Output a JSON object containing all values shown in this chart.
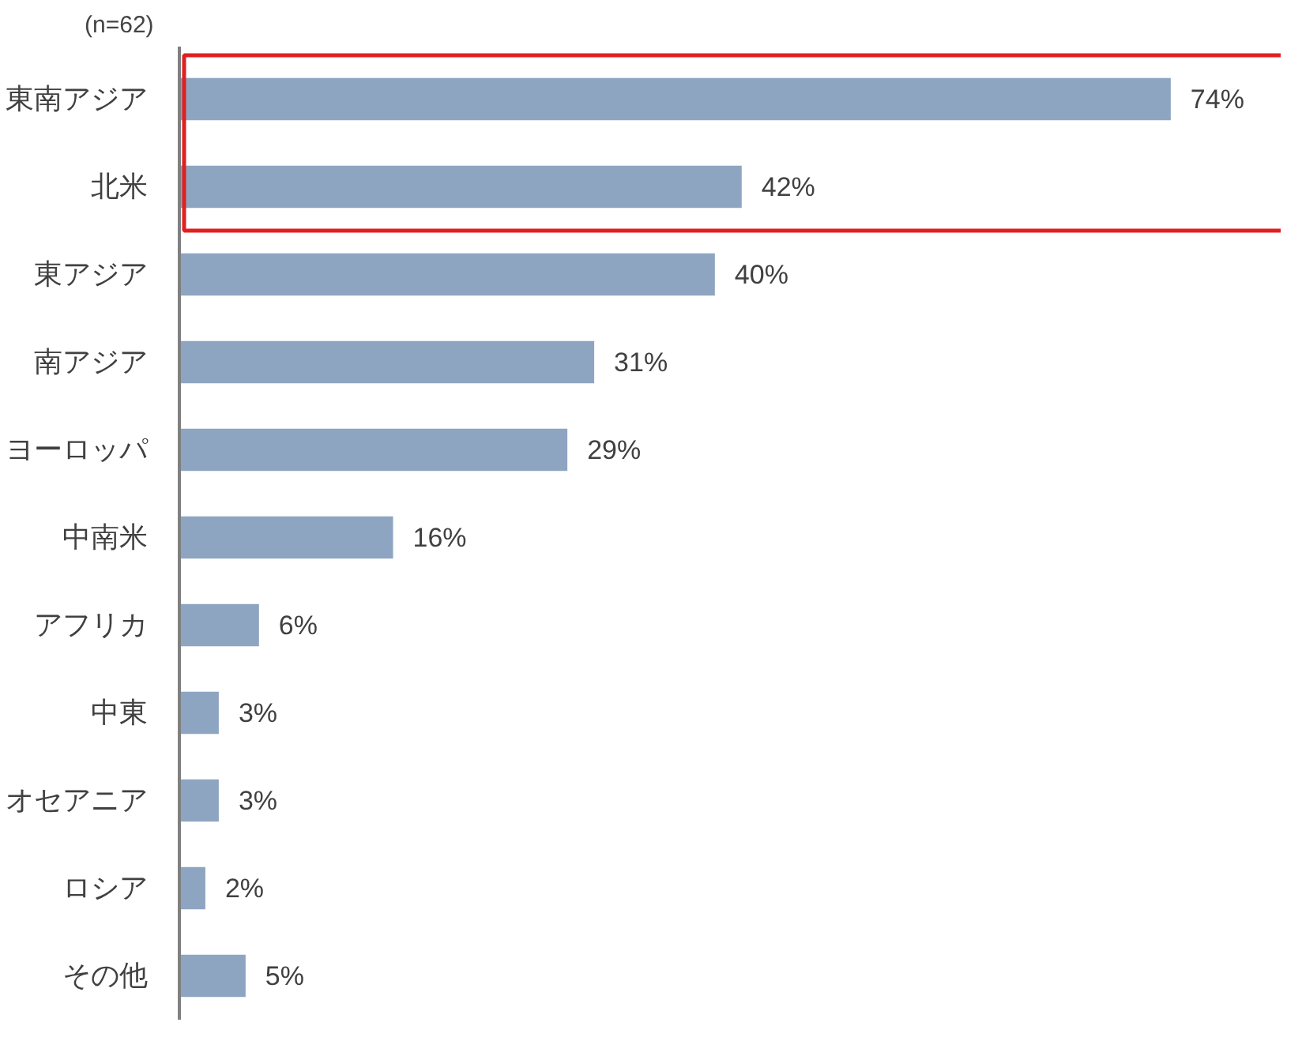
{
  "chart_data": {
    "type": "bar",
    "orientation": "horizontal",
    "title": "(n=62)",
    "categories": [
      "東南アジア",
      "北米",
      "東アジア",
      "南アジア",
      "ヨーロッパ",
      "中南米",
      "アフリカ",
      "中東",
      "オセアニア",
      "ロシア",
      "その他"
    ],
    "values": [
      74,
      42,
      40,
      31,
      29,
      16,
      6,
      3,
      3,
      2,
      5
    ],
    "value_labels": [
      "74%",
      "42%",
      "40%",
      "31%",
      "29%",
      "16%",
      "6%",
      "3%",
      "3%",
      "2%",
      "5%"
    ],
    "color": "#8ea5c2",
    "tick_labels": "y",
    "grid": false
  }
}
